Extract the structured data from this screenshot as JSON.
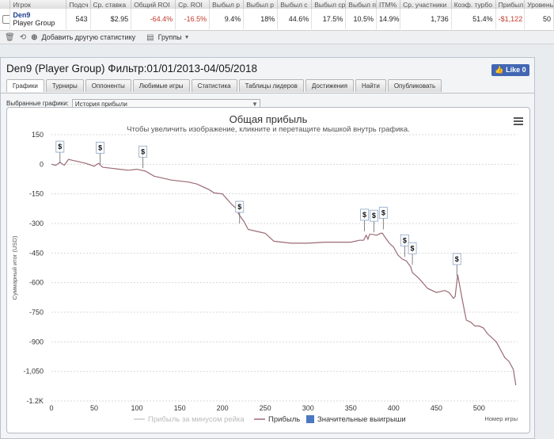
{
  "stats_table": {
    "headers": [
      "",
      "Игрок",
      "Подсч",
      "Ср. ставка",
      "Общий ROI",
      "Ср. ROI",
      "Выбыл р",
      "Выбыл р",
      "Выбыл с",
      "Выбыл ср",
      "Выбыл п",
      "ITM%",
      "Ср. участники",
      "Коэф. турбо",
      "Прибыл",
      "Уровень"
    ],
    "row": {
      "player_name": "Den9",
      "player_group": "Player Group",
      "values": [
        "543",
        "$2.95",
        "-64.4%",
        "-16.5%",
        "9.4%",
        "18%",
        "44.6%",
        "17.5%",
        "10.5%",
        "14.9%",
        "1,736",
        "51.4%",
        "-$1,122",
        "50"
      ]
    }
  },
  "toolbar": {
    "add_stat_label": "Добавить другую статистику",
    "groups_label": "Группы"
  },
  "window": {
    "title": "Den9 (Player Group) Фильтр:01/01/2013-04/05/2018",
    "like_label": "Like 0",
    "tabs": [
      "Графики",
      "Турниры",
      "Оппоненты",
      "Любимые игры",
      "Статистика",
      "Таблицы лидеров",
      "Достижения",
      "Найти",
      "Опубликовать"
    ],
    "active_tab": "Графики",
    "selected_charts_label": "Выбранные графики:",
    "selected_chart_value": "История прибыли"
  },
  "chart_data": {
    "type": "line",
    "title": "Общая прибыль",
    "subtitle": "Чтобы увеличить изображение, кликните и перетащите мышкой внутрь графика.",
    "xlabel": "Номер игры",
    "ylabel": "Суммарный итог (USD)",
    "xlim": [
      0,
      545
    ],
    "ylim": [
      -1200,
      150
    ],
    "x_ticks": [
      "0",
      "50",
      "100",
      "150",
      "200",
      "250",
      "300",
      "350",
      "400",
      "450",
      "500"
    ],
    "y_ticks": [
      "150",
      "0",
      "-150",
      "-300",
      "-450",
      "-600",
      "-750",
      "-900",
      "-1,050",
      "-1.2K"
    ],
    "grid": true,
    "legend_position": "bottom",
    "legend": [
      "Прибыль за минусом рейка",
      "Прибыль",
      "Значительные выигрыши"
    ],
    "series": [
      {
        "name": "Прибыль",
        "color": "#9b6a74",
        "x": [
          0,
          5,
          10,
          15,
          20,
          25,
          30,
          40,
          50,
          55,
          60,
          70,
          80,
          90,
          100,
          105,
          110,
          120,
          140,
          160,
          170,
          175,
          180,
          185,
          190,
          200,
          210,
          215,
          220,
          225,
          230,
          240,
          250,
          260,
          280,
          300,
          320,
          340,
          350,
          360,
          365,
          368,
          370,
          372,
          375,
          380,
          385,
          387,
          390,
          395,
          400,
          405,
          410,
          415,
          420,
          422,
          425,
          430,
          440,
          450,
          460,
          465,
          470,
          472,
          475,
          480,
          485,
          490,
          495,
          500,
          505,
          510,
          520,
          530,
          535,
          540,
          543
        ],
        "y": [
          0,
          -5,
          10,
          -5,
          25,
          20,
          15,
          5,
          -10,
          5,
          -15,
          -20,
          -25,
          -30,
          -25,
          -30,
          -35,
          -60,
          -80,
          -90,
          -100,
          -110,
          -120,
          -130,
          -145,
          -150,
          -200,
          -220,
          -260,
          -290,
          -330,
          -340,
          -350,
          -390,
          -400,
          -400,
          -395,
          -395,
          -395,
          -385,
          -385,
          -360,
          -380,
          -355,
          -355,
          -360,
          -350,
          -350,
          -370,
          -400,
          -420,
          -460,
          -480,
          -490,
          -520,
          -550,
          -560,
          -580,
          -630,
          -650,
          -640,
          -650,
          -680,
          -670,
          -560,
          -680,
          -790,
          -800,
          -820,
          -820,
          -830,
          -860,
          -900,
          -980,
          -1000,
          -1040,
          -1120
        ]
      }
    ],
    "big_wins": [
      {
        "x": 10,
        "y": 5
      },
      {
        "x": 57,
        "y": 0
      },
      {
        "x": 107,
        "y": -20
      },
      {
        "x": 220,
        "y": -300
      },
      {
        "x": 366,
        "y": -340
      },
      {
        "x": 377,
        "y": -345
      },
      {
        "x": 388,
        "y": -330
      },
      {
        "x": 413,
        "y": -470
      },
      {
        "x": 422,
        "y": -510
      },
      {
        "x": 474,
        "y": -565
      }
    ]
  }
}
